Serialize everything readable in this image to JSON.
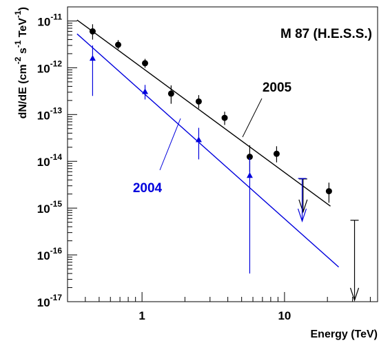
{
  "chart_data": {
    "type": "scatter",
    "title": "M 87 (H.E.S.S.)",
    "xlabel": "Energy (TeV)",
    "ylabel_parts": {
      "base": "dN/dE (cm",
      "sup1": "-2",
      "mid1": " s",
      "sup2": "-1",
      "mid2": " TeV",
      "sup3": "-1",
      "end": ")"
    },
    "x_scale": "log",
    "y_scale": "log",
    "xlim": [
      0.3,
      45
    ],
    "ylim": [
      1e-17,
      2e-11
    ],
    "x_ticks": [
      {
        "value": 1,
        "label": "1"
      },
      {
        "value": 10,
        "label": "10"
      }
    ],
    "y_ticks": [
      {
        "value": 1e-11,
        "base": "10",
        "exp": "-11"
      },
      {
        "value": 1e-12,
        "base": "10",
        "exp": "-12"
      },
      {
        "value": 1e-13,
        "base": "10",
        "exp": "-13"
      },
      {
        "value": 1e-14,
        "base": "10",
        "exp": "-14"
      },
      {
        "value": 1e-15,
        "base": "10",
        "exp": "-15"
      },
      {
        "value": 1e-16,
        "base": "10",
        "exp": "-16"
      },
      {
        "value": 1e-17,
        "base": "10",
        "exp": "-17"
      }
    ],
    "grid": false,
    "series": [
      {
        "name": "2005",
        "color": "#000000",
        "marker": "circle",
        "fit": {
          "x": [
            0.35,
            21
          ],
          "y": [
            1.05e-11,
            1.1e-15
          ]
        },
        "points": [
          {
            "x": 0.45,
            "y": 6e-12,
            "ylo": 4e-12,
            "yhi": 8.5e-12
          },
          {
            "x": 0.68,
            "y": 3.1e-12,
            "ylo": 2.5e-12,
            "yhi": 3.9e-12
          },
          {
            "x": 1.05,
            "y": 1.25e-12,
            "ylo": 1e-12,
            "yhi": 1.55e-12
          },
          {
            "x": 1.6,
            "y": 2.8e-13,
            "ylo": 1.7e-13,
            "yhi": 4.2e-13
          },
          {
            "x": 2.5,
            "y": 1.9e-13,
            "ylo": 1.35e-13,
            "yhi": 2.6e-13
          },
          {
            "x": 3.8,
            "y": 8.5e-14,
            "ylo": 6e-14,
            "yhi": 1.15e-13
          },
          {
            "x": 5.7,
            "y": 1.25e-14,
            "ylo": 6e-15,
            "yhi": 2.2e-14
          },
          {
            "x": 8.8,
            "y": 1.45e-14,
            "ylo": 9.5e-15,
            "yhi": 2.1e-14
          },
          {
            "x": 20.5,
            "y": 2.3e-15,
            "ylo": 1.3e-15,
            "yhi": 3.5e-15
          }
        ],
        "upper_limits": [
          {
            "x": 13.5,
            "y": 4.2e-15
          },
          {
            "x": 31,
            "y": 5.5e-16
          }
        ]
      },
      {
        "name": "2004",
        "color": "#0000dd",
        "marker": "triangle",
        "fit": {
          "x": [
            0.35,
            24
          ],
          "y": [
            5.3e-12,
            5.5e-17
          ]
        },
        "points": [
          {
            "x": 0.45,
            "y": 1.6e-12,
            "ylo": 2.5e-13,
            "yhi": 3e-12
          },
          {
            "x": 1.05,
            "y": 3.1e-13,
            "ylo": 2.1e-13,
            "yhi": 4.3e-13
          },
          {
            "x": 2.5,
            "y": 2.9e-14,
            "ylo": 1.1e-14,
            "yhi": 5.2e-14
          },
          {
            "x": 5.7,
            "y": 5e-15,
            "ylo": 4e-17,
            "yhi": 1.2e-14
          }
        ],
        "upper_limits": [
          {
            "x": 13.3,
            "y": 4.3e-15
          }
        ]
      }
    ]
  }
}
